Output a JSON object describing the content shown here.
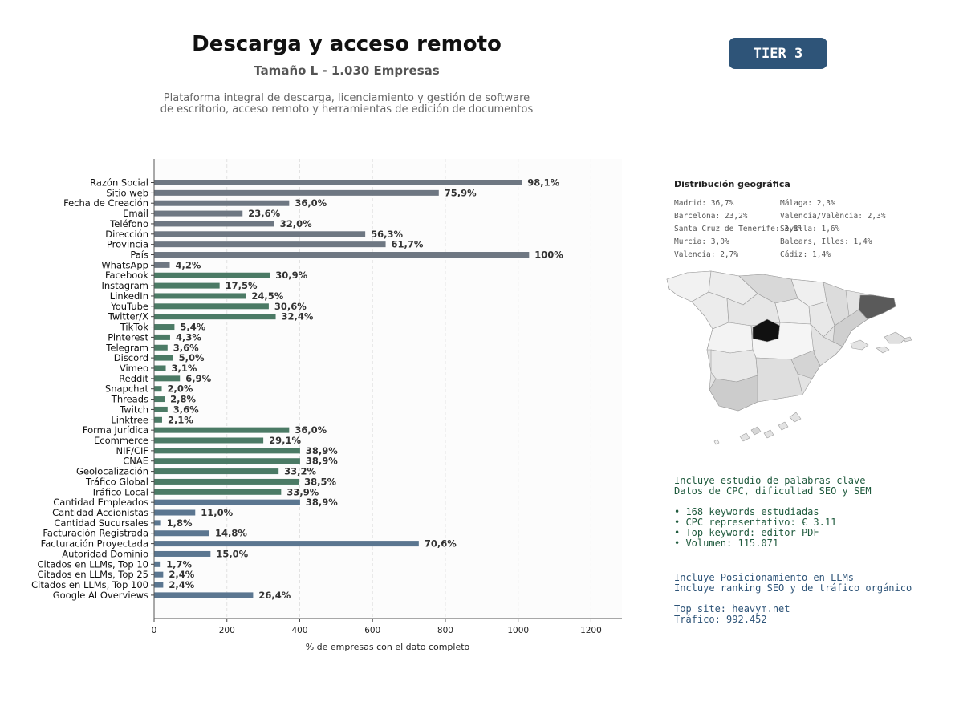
{
  "header": {
    "title": "Descarga y acceso remoto",
    "subtitle": "Tamaño L - 1.030 Empresas",
    "description_line1": "Plataforma integral de descarga, licenciamiento y gestión de software",
    "description_line2": "de escritorio, acceso remoto y herramientas de edición de documentos",
    "tier_label": "TIER 3",
    "tier_color": "#2e5478"
  },
  "chart_data": {
    "type": "bar",
    "orientation": "horizontal",
    "xlabel": "% de empresas con el dato completo",
    "ylabel": "",
    "xlim": [
      0,
      1285
    ],
    "xticks": [
      0,
      200,
      400,
      600,
      800,
      1000,
      1200
    ],
    "grid": "vertical dashed",
    "categories": [
      "Razón Social",
      "Sitio web",
      "Fecha de Creación",
      "Email",
      "Teléfono",
      "Dirección",
      "Provincia",
      "País",
      "WhatsApp",
      "Facebook",
      "Instagram",
      "LinkedIn",
      "YouTube",
      "Twitter/X",
      "TikTok",
      "Pinterest",
      "Telegram",
      "Discord",
      "Vimeo",
      "Reddit",
      "Snapchat",
      "Threads",
      "Twitch",
      "Linktree",
      "Forma Jurídica",
      "Ecommerce",
      "NIF/CIF",
      "CNAE",
      "Geolocalización",
      "Tráfico Global",
      "Tráfico Local",
      "Cantidad Empleados",
      "Cantidad Accionistas",
      "Cantidad Sucursales",
      "Facturación Registrada",
      "Facturación Proyectada",
      "Autoridad Dominio",
      "Citados en LLMs, Top 10",
      "Citados en LLMs, Top 25",
      "Citados en LLMs, Top 100",
      "Google AI Overviews"
    ],
    "values": [
      1010,
      782,
      371,
      243,
      330,
      580,
      636,
      1030,
      43,
      318,
      180,
      252,
      315,
      334,
      56,
      44,
      37,
      52,
      32,
      71,
      21,
      29,
      37,
      22,
      371,
      300,
      401,
      401,
      342,
      397,
      349,
      401,
      113,
      19,
      152,
      727,
      155,
      18,
      25,
      25,
      272
    ],
    "labels": [
      "98,1%",
      "75,9%",
      "36,0%",
      "23,6%",
      "32,0%",
      "56,3%",
      "61,7%",
      "100%",
      "4,2%",
      "30,9%",
      "17,5%",
      "24,5%",
      "30,6%",
      "32,4%",
      "5,4%",
      "4,3%",
      "3,6%",
      "5,0%",
      "3,1%",
      "6,9%",
      "2,0%",
      "2,8%",
      "3,6%",
      "2,1%",
      "36,0%",
      "29,1%",
      "38,9%",
      "38,9%",
      "33,2%",
      "38,5%",
      "33,9%",
      "38,9%",
      "11,0%",
      "1,8%",
      "14,8%",
      "70,6%",
      "15,0%",
      "1,7%",
      "2,4%",
      "2,4%",
      "26,4%"
    ],
    "groups": [
      {
        "count": 9,
        "color": "#6e7782"
      },
      {
        "count": 22,
        "color": "#4b7a65"
      },
      {
        "count": 10,
        "color": "#5b7690"
      }
    ]
  },
  "geo": {
    "title": "Distribución geográfica",
    "col1": [
      "Madrid: 36,7%",
      "Barcelona: 23,2%",
      "Santa Cruz de Tenerife: 3,8%",
      "Murcia: 3,0%",
      "Valencia: 2,7%"
    ],
    "col2": [
      "Málaga: 2,3%",
      "Valencia/València: 2,3%",
      "Sevilla: 1,6%",
      "Balears, Illes: 1,4%",
      "Cádiz: 1,4%"
    ]
  },
  "keywords": {
    "line1": "Incluye estudio de palabras clave",
    "line2": "Datos de CPC, dificultad SEO y SEM",
    "bullet1": "• 168 keywords estudiadas",
    "bullet2": "• CPC representativo: € 3.11",
    "bullet3": "• Top keyword: editor PDF",
    "bullet4": "• Volumen: 115.071"
  },
  "llm": {
    "line1": "Incluye Posicionamiento en LLMs",
    "line2": "Incluye ranking SEO y de tráfico orgánico",
    "top_site": "Top site: heavym.net",
    "traffic": "Tráfico: 992.452"
  }
}
